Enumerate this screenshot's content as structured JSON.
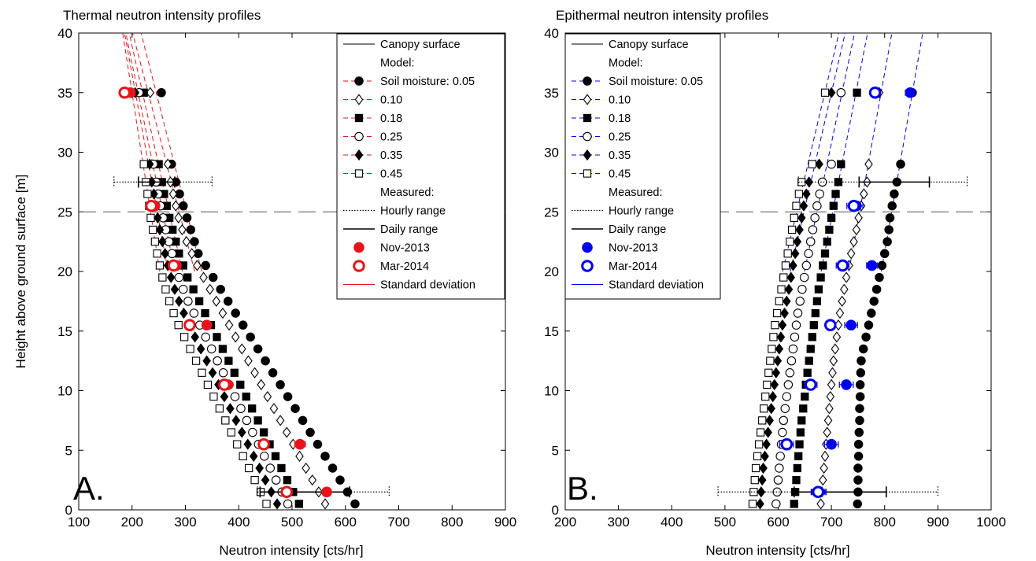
{
  "chart_data": [
    {
      "type": "scatter",
      "id": "A",
      "panel_label": "A.",
      "title": "Thermal neutron intensity profiles",
      "xlabel": "Neutron intensity [cts/hr]",
      "ylabel": "Height above ground surface [m]",
      "xlim": [
        100,
        900
      ],
      "ylim": [
        0,
        40
      ],
      "xticks": [
        "100",
        "200",
        "300",
        "400",
        "500",
        "600",
        "700",
        "800",
        "900"
      ],
      "yticks": [
        "0",
        "5",
        "10",
        "15",
        "20",
        "25",
        "30",
        "35",
        "40"
      ],
      "canopy_surface": 25,
      "accent_color": "#e8141a",
      "legend": {
        "position": "top-right",
        "entries": [
          "Canopy surface",
          "Model:",
          "Soil moisture: 0.05",
          "0.10",
          "0.18",
          "0.25",
          "0.35",
          "0.45",
          "Measured:",
          "Hourly range",
          "Daily range",
          "Nov-2013",
          "Mar-2014",
          "Standard deviation"
        ]
      },
      "model": {
        "heights": [
          0.5,
          1.5,
          2.5,
          3.5,
          4.5,
          5.5,
          6.5,
          7.5,
          8.5,
          9.5,
          10.5,
          11.5,
          12.5,
          13.5,
          14.5,
          15.5,
          16.5,
          17.5,
          18.5,
          19.5,
          20.5,
          21.5,
          22.5,
          23.5,
          24.5,
          25.5,
          26.5,
          27.5,
          29,
          35
        ],
        "series": [
          {
            "name": "0.05",
            "marker": "filled-circle",
            "values": [
              618,
              604,
              590,
              576,
              562,
              548,
              534,
              520,
              506,
              492,
              478,
              464,
              450,
              436,
              422,
              408,
              394,
              380,
              366,
              352,
              338,
              324,
              317,
              310,
              303,
              296,
              289,
              282,
              274,
              255
            ]
          },
          {
            "name": "0.10",
            "marker": "open-diamond",
            "values": [
              562,
              550,
              538,
              526,
              514,
              502,
              490,
              478,
              466,
              454,
              442,
              430,
              418,
              406,
              394,
              382,
              370,
              358,
              346,
              334,
              322,
              312,
              302,
              294,
              287,
              282,
              277,
              272,
              267,
              234
            ]
          },
          {
            "name": "0.18",
            "marker": "filled-square",
            "values": [
              513,
              502,
              491,
              480,
              469,
              458,
              447,
              436,
              425,
              414,
              403,
              392,
              381,
              370,
              359,
              348,
              337,
              326,
              315,
              304,
              296,
              288,
              282,
              276,
              270,
              265,
              260,
              256,
              250,
              222
            ]
          },
          {
            "name": "0.25",
            "marker": "open-circle",
            "values": [
              492,
              481,
              470,
              459,
              448,
              437,
              426,
              415,
              404,
              393,
              382,
              371,
              360,
              349,
              338,
              327,
              316,
              305,
              296,
              288,
              281,
              275,
              269,
              263,
              258,
              253,
              249,
              245,
              240,
              213
            ]
          },
          {
            "name": "0.35",
            "marker": "filled-diamond",
            "values": [
              472,
              461,
              450,
              439,
              428,
              417,
              406,
              395,
              384,
              373,
              362,
              351,
              340,
              329,
              318,
              307,
              297,
              288,
              280,
              273,
              267,
              262,
              257,
              252,
              248,
              244,
              241,
              237,
              233,
              206
            ]
          },
          {
            "name": "0.45",
            "marker": "open-square",
            "values": [
              452,
              441,
              430,
              419,
              408,
              397,
              386,
              375,
              364,
              353,
              342,
              331,
              320,
              309,
              298,
              287,
              278,
              270,
              263,
              257,
              252,
              247,
              243,
              239,
              235,
              232,
              229,
              226,
              222,
              200
            ]
          }
        ]
      },
      "measured": {
        "heights": [
          1.5,
          5.5,
          10.5,
          15.5,
          20.5,
          25.5,
          35
        ],
        "nov_2013": [
          565,
          515,
          380,
          340,
          283,
          243,
          197
        ],
        "nov_2013_sd": [
          8,
          10,
          7,
          6,
          6,
          5,
          5
        ],
        "mar_2014": [
          490,
          447,
          373,
          308,
          278,
          236,
          186
        ],
        "mar_2014_sd": [
          7,
          8,
          6,
          5,
          5,
          5,
          5
        ],
        "hourly_range": [
          {
            "y": 1.5,
            "x_min": 435,
            "x_max": 682
          },
          {
            "y": 27.5,
            "x_min": 166,
            "x_max": 350
          }
        ],
        "daily_range": [
          {
            "y": 1.5,
            "x_min": 440,
            "x_max": 608
          },
          {
            "y": 27.5,
            "x_min": 212,
            "x_max": 280
          }
        ]
      }
    },
    {
      "type": "scatter",
      "id": "B",
      "panel_label": "B.",
      "title": "Epithermal neutron intensity profiles",
      "xlabel": "Neutron intensity [cts/hr]",
      "ylabel": "",
      "xlim": [
        200,
        1000
      ],
      "ylim": [
        0,
        40
      ],
      "xticks": [
        "200",
        "300",
        "400",
        "500",
        "600",
        "700",
        "800",
        "900",
        "1000"
      ],
      "yticks": [
        "0",
        "5",
        "10",
        "15",
        "20",
        "25",
        "30",
        "35",
        "40"
      ],
      "canopy_surface": 25,
      "accent_color": "#0000ee",
      "legend": {
        "position": "top-left",
        "entries": [
          "Canopy surface",
          "Model:",
          "Soil moisture: 0.05",
          "0.10",
          "0.18",
          "0.25",
          "0.35",
          "0.45",
          "Measured:",
          "Hourly range",
          "Daily range",
          "Nov-2013",
          "Mar-2014",
          "Standard deviation"
        ]
      },
      "model": {
        "heights": [
          0.5,
          1.5,
          2.5,
          3.5,
          4.5,
          5.5,
          6.5,
          7.5,
          8.5,
          9.5,
          10.5,
          11.5,
          12.5,
          13.5,
          14.5,
          15.5,
          16.5,
          17.5,
          18.5,
          19.5,
          20.5,
          21.5,
          22.5,
          23.5,
          24.5,
          25.5,
          26.5,
          27.5,
          29,
          35
        ],
        "series": [
          {
            "name": "0.05",
            "marker": "filled-circle",
            "values": [
              749,
              750,
              750,
              750,
              751,
              751,
              752,
              753,
              753,
              754,
              754,
              755,
              756,
              760,
              765,
              770,
              775,
              780,
              785,
              790,
              795,
              800,
              805,
              808,
              810,
              814,
              818,
              823,
              830,
              852
            ]
          },
          {
            "name": "0.10",
            "marker": "open-diamond",
            "values": [
              680,
              682,
              684,
              686,
              688,
              690,
              692,
              694,
              696,
              698,
              700,
              702,
              704,
              707,
              710,
              713,
              716,
              720,
              724,
              728,
              733,
              737,
              742,
              747,
              751,
              756,
              761,
              767,
              770,
              790
            ]
          },
          {
            "name": "0.18",
            "marker": "filled-square",
            "values": [
              630,
              632,
              634,
              636,
              638,
              640,
              642,
              644,
              647,
              650,
              652,
              655,
              658,
              661,
              664,
              667,
              670,
              673,
              676,
              680,
              684,
              688,
              692,
              696,
              700,
              704,
              708,
              713,
              718,
              748
            ]
          },
          {
            "name": "0.25",
            "marker": "open-circle",
            "values": [
              596,
              598,
              600,
              602,
              604,
              606,
              608,
              610,
              613,
              616,
              619,
              622,
              625,
              628,
              631,
              634,
              637,
              641,
              645,
              649,
              653,
              657,
              661,
              665,
              669,
              673,
              678,
              683,
              700,
              718
            ]
          },
          {
            "name": "0.35",
            "marker": "filled-diamond",
            "values": [
              566,
              568,
              570,
              572,
              575,
              578,
              581,
              584,
              587,
              590,
              593,
              596,
              599,
              602,
              605,
              608,
              612,
              616,
              620,
              624,
              628,
              632,
              636,
              640,
              644,
              648,
              653,
              658,
              677,
              700
            ]
          },
          {
            "name": "0.45",
            "marker": "open-square",
            "values": [
              552,
              554,
              556,
              558,
              561,
              564,
              567,
              570,
              573,
              576,
              579,
              582,
              585,
              588,
              591,
              594,
              598,
              602,
              606,
              610,
              614,
              618,
              622,
              626,
              630,
              634,
              639,
              644,
              664,
              688
            ]
          }
        ]
      },
      "measured": {
        "heights": [
          1.5,
          5.5,
          10.5,
          15.5,
          20.5,
          25.5,
          35
        ],
        "nov_2013": [
          677,
          700,
          728,
          737,
          776,
          747,
          848
        ],
        "nov_2013_sd": [
          13,
          13,
          13,
          12,
          10,
          12,
          9
        ],
        "mar_2014": [
          675,
          616,
          661,
          698,
          721,
          742,
          782
        ],
        "mar_2014_sd": [
          13,
          13,
          12,
          9,
          12,
          13,
          8
        ],
        "hourly_range": [
          {
            "y": 1.5,
            "x_min": 487,
            "x_max": 900
          },
          {
            "y": 27.5,
            "x_min": 638,
            "x_max": 955
          }
        ],
        "daily_range": [
          {
            "y": 1.5,
            "x_min": 630,
            "x_max": 803
          },
          {
            "y": 27.5,
            "x_min": 752,
            "x_max": 884
          }
        ]
      }
    }
  ]
}
